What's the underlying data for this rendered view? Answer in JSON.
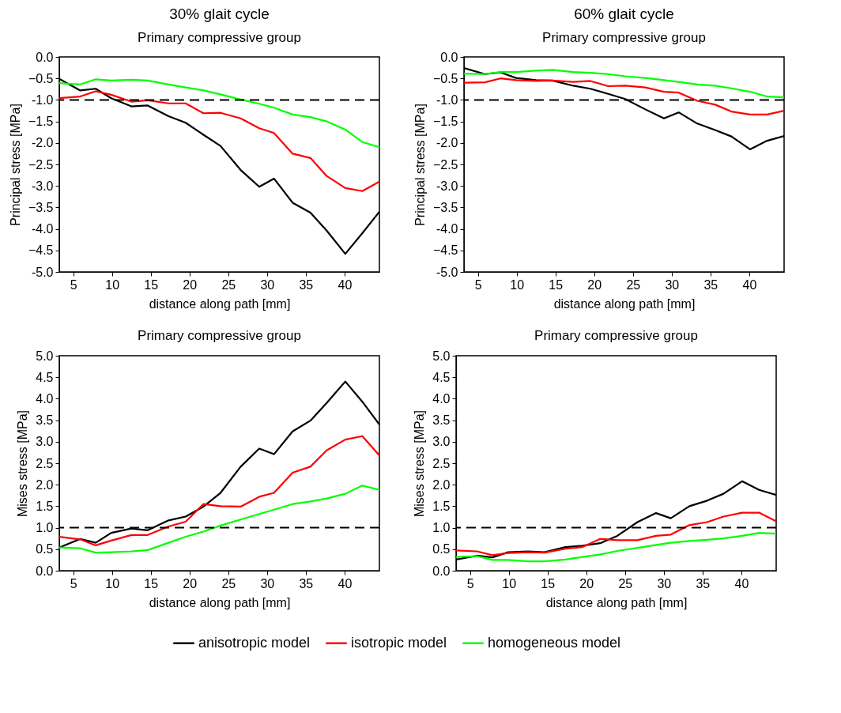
{
  "chart_data": [
    {
      "type": "line",
      "title": "30% glait cycle",
      "subtitle": "Primary compressive group",
      "xlabel": "distance along path [mm]",
      "ylabel": "Principal stress [MPa]",
      "x": [
        3.2,
        5.9,
        7.9,
        9.9,
        12.5,
        14.6,
        17.3,
        19.5,
        21.8,
        24.0,
        26.6,
        29.0,
        30.9,
        33.3,
        35.6,
        37.7,
        40.1,
        42.3,
        44.5
      ],
      "xlim": [
        3.2,
        44.5
      ],
      "xticks": [
        5,
        10,
        15,
        20,
        25,
        30,
        35,
        40
      ],
      "ylim": [
        -5,
        0
      ],
      "yticks": [
        {
          "value": 0,
          "label": "0.0"
        },
        -0.5,
        {
          "value": -1,
          "label": "-1.0"
        },
        -1.5,
        {
          "value": -2,
          "label": "-2.0"
        },
        -2.5,
        {
          "value": -3,
          "label": "-3.0"
        },
        -3.5,
        {
          "value": -4,
          "label": "-4.0"
        },
        -4.5,
        {
          "value": -5,
          "label": "-5.0"
        }
      ],
      "grid": false,
      "legend": "bottom",
      "marker": "none",
      "line_style": "solid",
      "series": [
        {
          "name": "anisotropic model",
          "color": "#000000",
          "values": [
            -0.51,
            -0.78,
            -0.74,
            -0.96,
            -1.15,
            -1.13,
            -1.38,
            -1.53,
            -1.81,
            -2.07,
            -2.63,
            -3.02,
            -2.83,
            -3.39,
            -3.62,
            -4.04,
            -4.58,
            -4.1,
            -3.6
          ]
        },
        {
          "name": "isotropic model",
          "color": "#ff0000",
          "values": [
            -0.96,
            -0.92,
            -0.8,
            -0.88,
            -1.04,
            -1.01,
            -1.08,
            -1.08,
            -1.31,
            -1.3,
            -1.43,
            -1.66,
            -1.77,
            -2.25,
            -2.35,
            -2.77,
            -3.05,
            -3.12,
            -2.9
          ]
        },
        {
          "name": "homogeneous model",
          "color": "#00ff00",
          "values": [
            -0.61,
            -0.64,
            -0.52,
            -0.55,
            -0.53,
            -0.55,
            -0.64,
            -0.71,
            -0.78,
            -0.87,
            -0.99,
            -1.09,
            -1.18,
            -1.34,
            -1.4,
            -1.5,
            -1.69,
            -1.98,
            -2.1
          ]
        }
      ],
      "ref_lines": [
        {
          "axis": "y",
          "value": -1,
          "color": "#000000",
          "line_style": "dashed"
        }
      ]
    },
    {
      "type": "line",
      "title": "60% glait cycle",
      "subtitle": "Primary compressive group",
      "xlabel": "distance along path [mm]",
      "ylabel": "Principal stress [MPa]",
      "x": [
        3.2,
        5.9,
        7.9,
        9.9,
        12.5,
        14.6,
        17.3,
        19.5,
        21.8,
        24.0,
        26.6,
        29.0,
        30.9,
        33.3,
        35.6,
        37.7,
        40.1,
        42.3,
        44.5
      ],
      "xlim": [
        3.2,
        44.5
      ],
      "xticks": [
        5,
        10,
        15,
        20,
        25,
        30,
        35,
        40
      ],
      "ylim": [
        -5,
        0
      ],
      "yticks": [
        {
          "value": 0,
          "label": "0.0"
        },
        -0.5,
        {
          "value": -1,
          "label": "-1.0"
        },
        -1.5,
        {
          "value": -2,
          "label": "-2.0"
        },
        -2.5,
        {
          "value": -3,
          "label": "-3.0"
        },
        -3.5,
        {
          "value": -4,
          "label": "-4.0"
        },
        -4.5,
        {
          "value": -5,
          "label": "-5.0"
        }
      ],
      "grid": false,
      "legend": "bottom",
      "marker": "none",
      "line_style": "solid",
      "series": [
        {
          "name": "anisotropic model",
          "color": "#000000",
          "values": [
            -0.26,
            -0.4,
            -0.36,
            -0.49,
            -0.54,
            -0.55,
            -0.67,
            -0.74,
            -0.86,
            -0.98,
            -1.22,
            -1.43,
            -1.29,
            -1.55,
            -1.7,
            -1.85,
            -2.15,
            -1.95,
            -1.84
          ]
        },
        {
          "name": "isotropic model",
          "color": "#ff0000",
          "values": [
            -0.6,
            -0.59,
            -0.5,
            -0.54,
            -0.56,
            -0.55,
            -0.58,
            -0.56,
            -0.68,
            -0.67,
            -0.71,
            -0.81,
            -0.83,
            -1.02,
            -1.11,
            -1.27,
            -1.34,
            -1.34,
            -1.25
          ]
        },
        {
          "name": "homogeneous model",
          "color": "#00ff00",
          "values": [
            -0.39,
            -0.4,
            -0.35,
            -0.35,
            -0.32,
            -0.3,
            -0.35,
            -0.37,
            -0.4,
            -0.45,
            -0.49,
            -0.54,
            -0.58,
            -0.64,
            -0.67,
            -0.73,
            -0.81,
            -0.92,
            -0.94
          ]
        }
      ],
      "ref_lines": [
        {
          "axis": "y",
          "value": -1,
          "color": "#000000",
          "line_style": "dashed"
        }
      ]
    },
    {
      "type": "line",
      "title": "Primary compressive group",
      "xlabel": "distance along path [mm]",
      "ylabel": "Mises stress [MPa]",
      "x": [
        3.2,
        5.9,
        7.9,
        9.9,
        12.5,
        14.6,
        17.3,
        19.5,
        21.8,
        24.0,
        26.6,
        29.0,
        30.9,
        33.3,
        35.6,
        37.7,
        40.1,
        42.3,
        44.5
      ],
      "xlim": [
        3.2,
        44.5
      ],
      "xticks": [
        5,
        10,
        15,
        20,
        25,
        30,
        35,
        40
      ],
      "ylim": [
        0,
        5
      ],
      "yticks": [
        {
          "value": 0,
          "label": "0.0"
        },
        0.5,
        {
          "value": 1,
          "label": "1.0"
        },
        1.5,
        {
          "value": 2,
          "label": "2.0"
        },
        2.5,
        {
          "value": 3,
          "label": "3.0"
        },
        3.5,
        {
          "value": 4,
          "label": "4.0"
        },
        4.5,
        {
          "value": 5,
          "label": "5.0"
        }
      ],
      "grid": false,
      "legend": "bottom",
      "marker": "none",
      "line_style": "solid",
      "series": [
        {
          "name": "anisotropic model",
          "color": "#000000",
          "values": [
            0.54,
            0.74,
            0.65,
            0.88,
            0.98,
            0.94,
            1.17,
            1.26,
            1.49,
            1.81,
            2.42,
            2.84,
            2.71,
            3.24,
            3.49,
            3.9,
            4.4,
            3.93,
            3.4
          ]
        },
        {
          "name": "isotropic model",
          "color": "#ff0000",
          "values": [
            0.79,
            0.73,
            0.59,
            0.7,
            0.83,
            0.83,
            1.03,
            1.14,
            1.55,
            1.5,
            1.49,
            1.72,
            1.81,
            2.28,
            2.42,
            2.8,
            3.05,
            3.13,
            2.68
          ]
        },
        {
          "name": "homogeneous model",
          "color": "#00ff00",
          "values": [
            0.54,
            0.52,
            0.42,
            0.43,
            0.45,
            0.48,
            0.65,
            0.79,
            0.91,
            1.05,
            1.19,
            1.32,
            1.42,
            1.55,
            1.61,
            1.68,
            1.79,
            1.98,
            1.88
          ]
        }
      ],
      "ref_lines": [
        {
          "axis": "y",
          "value": 1,
          "color": "#000000",
          "line_style": "dashed"
        }
      ]
    },
    {
      "type": "line",
      "title": "Primary compressive group",
      "xlabel": "distance along path [mm]",
      "ylabel": "Mises stress [MPa]",
      "x": [
        3.2,
        5.9,
        7.9,
        9.9,
        12.5,
        14.6,
        17.3,
        19.5,
        21.8,
        24.0,
        26.6,
        29.0,
        30.9,
        33.3,
        35.6,
        37.7,
        40.1,
        42.3,
        44.5
      ],
      "xlim": [
        3.2,
        44.5
      ],
      "xticks": [
        5,
        10,
        15,
        20,
        25,
        30,
        35,
        40
      ],
      "ylim": [
        0,
        5
      ],
      "yticks": [
        {
          "value": 0,
          "label": "0.0"
        },
        0.5,
        {
          "value": 1,
          "label": "1.0"
        },
        1.5,
        {
          "value": 2,
          "label": "2.0"
        },
        2.5,
        {
          "value": 3,
          "label": "3.0"
        },
        3.5,
        {
          "value": 4,
          "label": "4.0"
        },
        4.5,
        {
          "value": 5,
          "label": "5.0"
        }
      ],
      "grid": false,
      "legend": "bottom",
      "marker": "none",
      "line_style": "solid",
      "series": [
        {
          "name": "anisotropic model",
          "color": "#000000",
          "values": [
            0.26,
            0.35,
            0.31,
            0.43,
            0.45,
            0.43,
            0.55,
            0.58,
            0.64,
            0.81,
            1.13,
            1.34,
            1.22,
            1.5,
            1.63,
            1.79,
            2.08,
            1.88,
            1.76
          ]
        },
        {
          "name": "isotropic model",
          "color": "#ff0000",
          "values": [
            0.47,
            0.45,
            0.36,
            0.41,
            0.43,
            0.42,
            0.51,
            0.55,
            0.74,
            0.71,
            0.71,
            0.81,
            0.84,
            1.06,
            1.13,
            1.26,
            1.35,
            1.35,
            1.15
          ]
        },
        {
          "name": "homogeneous model",
          "color": "#00ff00",
          "values": [
            0.32,
            0.34,
            0.25,
            0.25,
            0.22,
            0.22,
            0.26,
            0.32,
            0.38,
            0.46,
            0.53,
            0.6,
            0.65,
            0.69,
            0.72,
            0.75,
            0.81,
            0.88,
            0.86
          ]
        }
      ],
      "ref_lines": [
        {
          "axis": "y",
          "value": 1,
          "color": "#000000",
          "line_style": "dashed"
        }
      ]
    }
  ]
}
